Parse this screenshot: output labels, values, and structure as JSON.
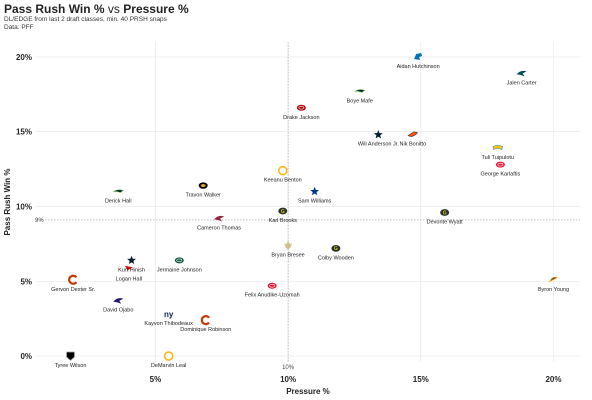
{
  "header": {
    "title_a": "Pass Rush Win %",
    "title_vs": " vs ",
    "title_b": "Pressure %",
    "subtitle": "DL/EDGE from last 2 draft classes, min. 40 PRSH snaps",
    "source": "Data: PFF"
  },
  "chart_data": {
    "type": "scatter",
    "xlabel": "Pressure %",
    "ylabel": "Pass Rush Win %",
    "xlim": [
      0.005,
      0.21
    ],
    "ylim": [
      -0.004,
      0.21
    ],
    "xticks": [
      0.05,
      0.1,
      0.15,
      0.2
    ],
    "xtick_labels": [
      "5%",
      "10%",
      "15%",
      "20%"
    ],
    "yticks": [
      0,
      0.05,
      0.1,
      0.15,
      0.2
    ],
    "ytick_labels": [
      "0%",
      "5%",
      "10%",
      "15%",
      "20%"
    ],
    "ref_x": 0.1,
    "ref_x_label": "10%",
    "ref_y": 0.091,
    "ref_y_label": "9%",
    "grid": true,
    "points": [
      {
        "label": "Aidan Hutchinson",
        "x": 0.149,
        "y": 0.2,
        "color": "#0076B6",
        "shape": "lion"
      },
      {
        "label": "Jalen Carter",
        "x": 0.188,
        "y": 0.189,
        "color": "#004C54",
        "shape": "bird"
      },
      {
        "label": "Boye Mafe",
        "x": 0.127,
        "y": 0.177,
        "color": "#002244",
        "shape": "hawk"
      },
      {
        "label": "Drake Jackson",
        "x": 0.105,
        "y": 0.166,
        "color": "#AA0000",
        "shape": "oval"
      },
      {
        "label": "Will Anderson Jr.",
        "x": 0.134,
        "y": 0.148,
        "color": "#03202F",
        "shape": "star"
      },
      {
        "label": "Nik Bonitto",
        "x": 0.147,
        "y": 0.148,
        "color": "#FB4F14",
        "shape": "horse"
      },
      {
        "label": "Tuli Tuipulotu",
        "x": 0.179,
        "y": 0.139,
        "color": "#FFC20E",
        "shape": "bolt"
      },
      {
        "label": "George Karlaftis",
        "x": 0.18,
        "y": 0.128,
        "color": "#E31837",
        "shape": "oval"
      },
      {
        "label": "Keeanu Benton",
        "x": 0.098,
        "y": 0.124,
        "color": "#FFB612",
        "shape": "circle"
      },
      {
        "label": "Travon Walker",
        "x": 0.068,
        "y": 0.114,
        "color": "#006778",
        "shape": "cat"
      },
      {
        "label": "Derick Hall",
        "x": 0.036,
        "y": 0.11,
        "color": "#002244",
        "shape": "hawk"
      },
      {
        "label": "Sam Williams",
        "x": 0.11,
        "y": 0.11,
        "color": "#003594",
        "shape": "star"
      },
      {
        "label": "Karl Brooks",
        "x": 0.098,
        "y": 0.097,
        "color": "#203731",
        "shape": "g"
      },
      {
        "label": "Devonte Wyatt",
        "x": 0.159,
        "y": 0.096,
        "color": "#203731",
        "shape": "g"
      },
      {
        "label": "Cameron Thomas",
        "x": 0.074,
        "y": 0.092,
        "color": "#97233F",
        "shape": "bird"
      },
      {
        "label": "Bryan Bresee",
        "x": 0.1,
        "y": 0.074,
        "color": "#D3BC8D",
        "shape": "fleur"
      },
      {
        "label": "Colby Wooden",
        "x": 0.118,
        "y": 0.072,
        "color": "#203731",
        "shape": "g"
      },
      {
        "label": "Kurt Hinish",
        "x": 0.041,
        "y": 0.064,
        "color": "#03202F",
        "shape": "star"
      },
      {
        "label": "Jermaine Johnson",
        "x": 0.059,
        "y": 0.064,
        "color": "#125740",
        "shape": "oval"
      },
      {
        "label": "Logan Hall",
        "x": 0.04,
        "y": 0.058,
        "color": "#D50A0A",
        "shape": "flag"
      },
      {
        "label": "Gervon Dexter Sr.",
        "x": 0.019,
        "y": 0.051,
        "color": "#C83803",
        "shape": "c"
      },
      {
        "label": "Felix Anudike-Uzomah",
        "x": 0.094,
        "y": 0.047,
        "color": "#E31837",
        "shape": "oval"
      },
      {
        "label": "Byron Young",
        "x": 0.2,
        "y": 0.051,
        "color": "#003594",
        "shape": "horn"
      },
      {
        "label": "David Ojabo",
        "x": 0.036,
        "y": 0.037,
        "color": "#241773",
        "shape": "bird"
      },
      {
        "label": "Kayvon Thibodeaux",
        "x": 0.055,
        "y": 0.028,
        "color": "#0B2265",
        "shape": "ny"
      },
      {
        "label": "Dominique Robinson",
        "x": 0.069,
        "y": 0.024,
        "color": "#C83803",
        "shape": "c"
      },
      {
        "label": "Tyree Wilson",
        "x": 0.018,
        "y": 0.0,
        "color": "#A5ACAF",
        "shape": "shield"
      },
      {
        "label": "DeMarvin Leal",
        "x": 0.055,
        "y": 0.0,
        "color": "#FFB612",
        "shape": "circle"
      }
    ]
  }
}
